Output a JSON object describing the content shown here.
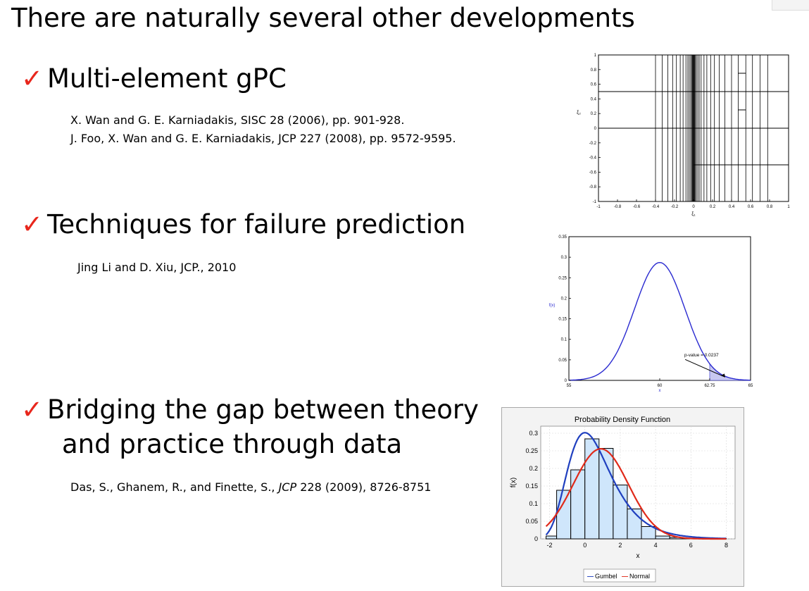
{
  "slide": {
    "title": "There are naturally several other developments",
    "check_glyph": "✓",
    "sections": [
      {
        "heading": "Multi-element gPC",
        "refs": [
          "X. Wan and G. E. Karniadakis, SISC 28 (2006), pp. 901-928.",
          "J. Foo, X. Wan and G. E. Karniadakis, JCP 227 (2008), pp. 9572-9595."
        ]
      },
      {
        "heading": "Techniques for failure prediction",
        "refs": [
          "Jing Li and D. Xiu, JCP., 2010"
        ]
      },
      {
        "heading": "Bridging the gap between theory",
        "heading_cont": "and practice through data",
        "ref_a": "Das, S., Ghanem, R., and Finette, S., ",
        "ref_journal": "JCP",
        "ref_b": " 228 (2009), 8726-8751"
      }
    ]
  },
  "chart_data": [
    {
      "type": "diagram",
      "xlim": [
        -1,
        1
      ],
      "ylim": [
        -1,
        1
      ],
      "xticks": [
        "-1",
        "-0.8",
        "-0.6",
        "-0.4",
        "-0.2",
        "0",
        "0.2",
        "0.4",
        "0.6",
        "0.8",
        "1"
      ],
      "yticks": [
        "-1",
        "-0.8",
        "-0.6",
        "-0.4",
        "-0.2",
        "0",
        "0.2",
        "0.4",
        "0.6",
        "0.8",
        "1"
      ],
      "xlabel": "ξ₁",
      "ylabel": "ξ₂"
    },
    {
      "type": "line",
      "xlim": [
        55,
        65
      ],
      "ylim": [
        0,
        0.35
      ],
      "xticks": [
        "55",
        "60",
        "62.75",
        "65"
      ],
      "yticks": [
        "0",
        "0.05",
        "0.1",
        "0.15",
        "0.2",
        "0.25",
        "0.3",
        "0.35"
      ],
      "xlabel": "x",
      "ylabel": "f(x)",
      "series": [
        {
          "mean": 60,
          "sd": 1.39
        }
      ],
      "annotation": "p-value = 0.0237",
      "shaded_from": 62.75,
      "color": "#2a2ad0"
    },
    {
      "type": "bar",
      "title": "Probability Density Function",
      "xlabel": "x",
      "ylabel": "f(x)",
      "xlim": [
        -2.5,
        8.5
      ],
      "ylim": [
        0,
        0.32
      ],
      "xticks": [
        "-2",
        "0",
        "2",
        "4",
        "6",
        "8"
      ],
      "yticks": [
        "0",
        "0.05",
        "0.1",
        "0.15",
        "0.2",
        "0.25",
        "0.3"
      ],
      "bin_edges": [
        -2.2,
        -1.6,
        -0.8,
        0,
        0.8,
        1.6,
        2.4,
        3.2,
        4.0,
        4.8,
        5.6,
        6.4,
        7.2,
        8.0
      ],
      "bin_values": [
        0.008,
        0.138,
        0.196,
        0.284,
        0.257,
        0.153,
        0.085,
        0.035,
        0.008,
        0.004,
        0.002,
        0.001,
        0.001
      ],
      "series": [
        {
          "name": "Gumbel",
          "color": "#1f3fbf",
          "mu": 0,
          "beta": 1.22
        },
        {
          "name": "Normal",
          "color": "#e02a1a",
          "mean": 0.9,
          "sd": 1.56
        }
      ],
      "legend_sep": "—",
      "legend": "bottom"
    }
  ]
}
